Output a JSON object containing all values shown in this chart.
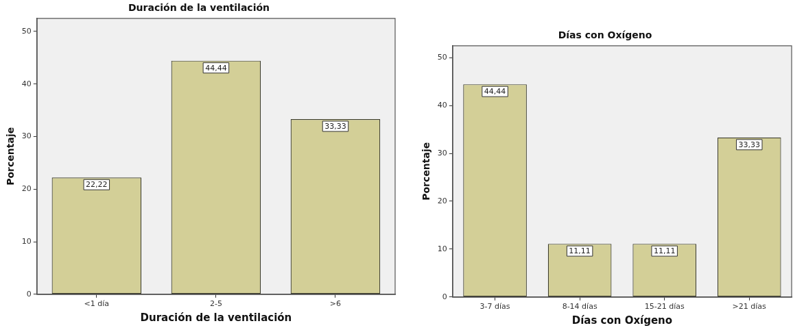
{
  "chart_data": [
    {
      "type": "bar",
      "title": "Duración de la ventilación",
      "xlabel": "Duración de la ventilación",
      "ylabel": "Porcentaje",
      "categories": [
        "<1 día",
        "2-5",
        ">6"
      ],
      "values": [
        22.22,
        44.44,
        33.33
      ],
      "value_labels": [
        "22,22",
        "44,44",
        "33,33"
      ],
      "color": "#d3cf97",
      "ylim": [
        0,
        52.5
      ],
      "yticks": [
        0,
        10,
        20,
        30,
        40,
        50
      ],
      "grid": false,
      "legend": false
    },
    {
      "type": "bar",
      "title": "Días con Oxígeno",
      "xlabel": "Días con Oxígeno",
      "ylabel": "Porcentaje",
      "categories": [
        "3-7 días",
        "8-14 días",
        "15-21 días",
        ">21 días"
      ],
      "values": [
        44.44,
        11.11,
        11.11,
        33.33
      ],
      "value_labels": [
        "44,44",
        "11,11",
        "11,11",
        "33,33"
      ],
      "color": "#d3cf97",
      "ylim": [
        0,
        52.5
      ],
      "yticks": [
        0,
        10,
        20,
        30,
        40,
        50
      ],
      "grid": false,
      "legend": false
    }
  ]
}
